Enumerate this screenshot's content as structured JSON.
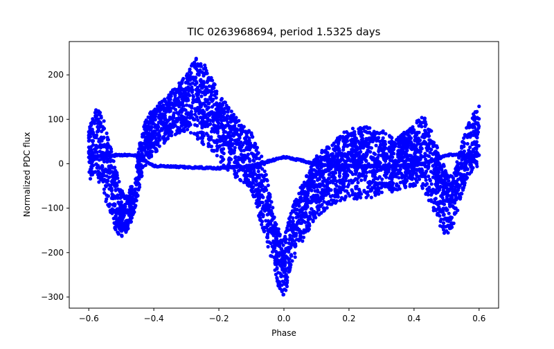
{
  "chart_data": {
    "type": "scatter",
    "title": "TIC 0263968694, period 1.5325 days",
    "xlabel": "Phase",
    "ylabel": "Normalized PDC flux",
    "xlim": [
      -0.66,
      0.66
    ],
    "ylim": [
      -325,
      275
    ],
    "xticks": [
      -0.6,
      -0.4,
      -0.2,
      0.0,
      0.2,
      0.4,
      0.6
    ],
    "xtick_labels": [
      "−0.6",
      "−0.4",
      "−0.2",
      "0.0",
      "0.2",
      "0.4",
      "0.6"
    ],
    "yticks": [
      -300,
      -200,
      -100,
      0,
      100,
      200
    ],
    "ytick_labels": [
      "−300",
      "−200",
      "−100",
      "0",
      "100",
      "200"
    ],
    "grid": false,
    "marker_color": "#0000ff",
    "series": [
      {
        "name": "PDC flux",
        "envelope": {
          "phase": [
            -0.6,
            -0.58,
            -0.56,
            -0.54,
            -0.52,
            -0.5,
            -0.48,
            -0.46,
            -0.44,
            -0.42,
            -0.4,
            -0.35,
            -0.3,
            -0.27,
            -0.24,
            -0.2,
            -0.15,
            -0.1,
            -0.08,
            -0.06,
            -0.04,
            -0.02,
            0.0,
            0.02,
            0.04,
            0.06,
            0.1,
            0.15,
            0.2,
            0.25,
            0.3,
            0.35,
            0.4,
            0.43,
            0.45,
            0.47,
            0.49,
            0.5,
            0.52,
            0.54,
            0.56,
            0.58,
            0.6
          ],
          "upper": [
            80,
            125,
            115,
            60,
            0,
            -60,
            -70,
            -30,
            60,
            110,
            125,
            160,
            200,
            240,
            220,
            160,
            110,
            70,
            40,
            0,
            -80,
            -140,
            -170,
            -110,
            -70,
            -40,
            20,
            50,
            80,
            85,
            75,
            60,
            90,
            110,
            80,
            40,
            0,
            -20,
            -30,
            30,
            80,
            110,
            130
          ],
          "lower": [
            -40,
            -20,
            -60,
            -100,
            -150,
            -165,
            -150,
            -120,
            -40,
            0,
            20,
            60,
            70,
            55,
            40,
            0,
            -30,
            -60,
            -110,
            -160,
            -210,
            -270,
            -305,
            -250,
            -200,
            -170,
            -120,
            -90,
            -80,
            -80,
            -70,
            -60,
            -50,
            -60,
            -90,
            -120,
            -160,
            -160,
            -140,
            -90,
            -40,
            -20,
            -10
          ]
        },
        "secondary_track": {
          "phase": [
            -0.6,
            -0.5,
            -0.45,
            -0.4,
            -0.3,
            -0.2,
            -0.1,
            -0.05,
            0.0,
            0.05,
            0.1,
            0.2,
            0.3,
            0.4,
            0.45,
            0.5,
            0.6
          ],
          "values": [
            15,
            20,
            18,
            -5,
            -8,
            -10,
            -5,
            5,
            15,
            8,
            -2,
            -5,
            -6,
            -3,
            5,
            20,
            18
          ]
        }
      }
    ]
  }
}
